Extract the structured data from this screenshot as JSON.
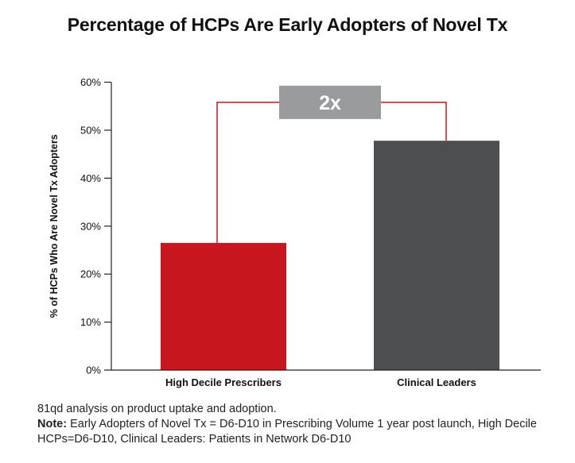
{
  "title": "Percentage of HCPs Are Early Adopters of Novel Tx",
  "footnote": {
    "source": "81qd analysis on product uptake and adoption.",
    "note_label": "Note:",
    "note_text": " Early Adopters of Novel Tx = D6-D10 in Prescribing Volume 1 year post launch, High Decile HCPs=D6-D10, Clinical Leaders: Patients in Network D6-D10"
  },
  "colors": {
    "high_decile": "#c8161e",
    "clinical_leaders": "#4d4e50",
    "bracket": "#c8161e",
    "badge_bg": "#9a9b9d",
    "badge_text": "#ffffff",
    "axis": "#222222"
  },
  "chart_data": {
    "type": "bar",
    "title": "Percentage of HCPs Are Early Adopters of Novel Tx",
    "ylabel": "% of HCPs Who Are Novel Tx Adopters",
    "xlabel": "",
    "categories": [
      "High Decile Prescribers",
      "Clinical Leaders"
    ],
    "values": [
      26.5,
      47.8
    ],
    "bar_colors": [
      "#c8161e",
      "#4d4e50"
    ],
    "ylim": [
      0,
      60
    ],
    "yticks": [
      0,
      10,
      20,
      30,
      40,
      50,
      60
    ],
    "ytick_labels": [
      "0%",
      "10%",
      "20%",
      "30%",
      "40%",
      "50%",
      "60%"
    ],
    "grid": false,
    "annotation": {
      "label": "2x",
      "bracket_level": 55.8
    }
  }
}
